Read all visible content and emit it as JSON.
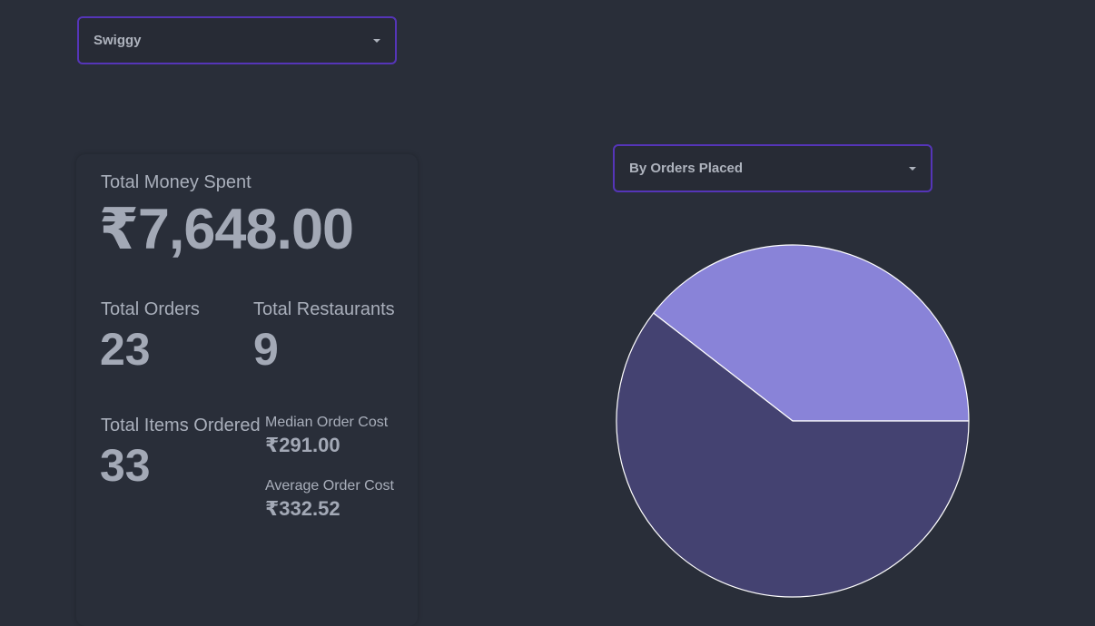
{
  "platform_select": {
    "value": "Swiggy"
  },
  "metric_select": {
    "value": "By Orders Placed"
  },
  "stats": {
    "total_money_spent": {
      "label": "Total Money Spent",
      "value": "₹7,648.00"
    },
    "total_orders": {
      "label": "Total Orders",
      "value": "23"
    },
    "total_restaurants": {
      "label": "Total Restaurants",
      "value": "9"
    },
    "total_items_ordered": {
      "label": "Total Items Ordered",
      "value": "33"
    },
    "median_order_cost": {
      "label": "Median Order Cost",
      "value": "₹291.00"
    },
    "average_order_cost": {
      "label": "Average Order Cost",
      "value": "₹332.52"
    }
  },
  "chart_data": {
    "type": "pie",
    "title": "",
    "slices": [
      {
        "fraction": 0.395,
        "color": "#8983d8"
      },
      {
        "fraction": 0.605,
        "color": "#444271"
      }
    ]
  }
}
